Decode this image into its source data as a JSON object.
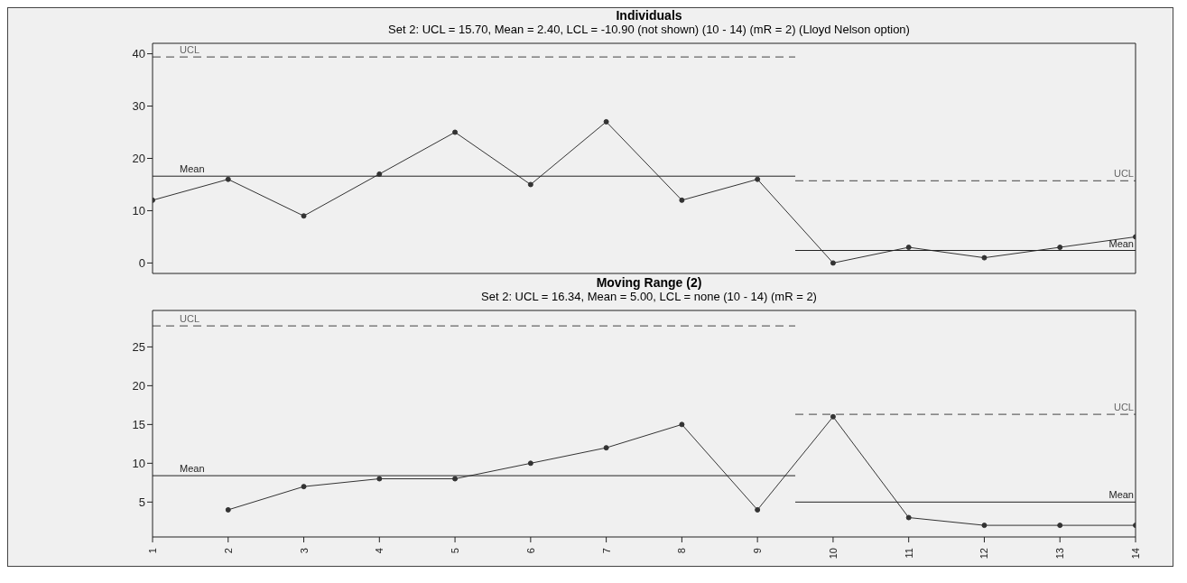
{
  "chart_data": [
    {
      "type": "line",
      "title": "Individuals",
      "subtitle": "Set 2: UCL = 15.70, Mean = 2.40, LCL = -10.90 (not shown) (10 - 14) (mR = 2) (Lloyd Nelson option)",
      "x": [
        1,
        2,
        3,
        4,
        5,
        6,
        7,
        8,
        9,
        10,
        11,
        12,
        13,
        14
      ],
      "xlim": [
        1,
        14
      ],
      "xticks": [
        1,
        2,
        3,
        4,
        5,
        6,
        7,
        8,
        9,
        10,
        11,
        12,
        13,
        14
      ],
      "ylim": [
        -2,
        42
      ],
      "yticks": [
        0,
        10,
        20,
        30,
        40
      ],
      "tick_labels": "y",
      "grid": false,
      "series": [
        {
          "color": "#333333",
          "marker": "circle",
          "line_style": "solid",
          "values": [
            12,
            16,
            9,
            17,
            25,
            15,
            27,
            12,
            16,
            0,
            3,
            1,
            3,
            5
          ]
        },
        {
          "name": "UCL",
          "color": "#666666",
          "marker": "none",
          "line_style": "dashed",
          "x": [
            1,
            9.5
          ],
          "values": [
            39.4,
            39.4
          ]
        },
        {
          "name": "Mean",
          "color": "#222222",
          "marker": "none",
          "line_style": "solid",
          "x": [
            1,
            9.5
          ],
          "values": [
            16.6,
            16.6
          ]
        },
        {
          "name": "UCL",
          "color": "#666666",
          "marker": "none",
          "line_style": "dashed",
          "x": [
            9.5,
            14
          ],
          "values": [
            15.7,
            15.7
          ]
        },
        {
          "name": "Mean",
          "color": "#222222",
          "marker": "none",
          "line_style": "solid",
          "x": [
            9.5,
            14
          ],
          "values": [
            2.4,
            2.4
          ]
        }
      ]
    },
    {
      "type": "line",
      "title": "Moving Range (2)",
      "subtitle": "Set 2: UCL = 16.34, Mean = 5.00, LCL = none (10 - 14) (mR = 2)",
      "xlim": [
        1,
        14
      ],
      "xticks": [
        1,
        2,
        3,
        4,
        5,
        6,
        7,
        8,
        9,
        10,
        11,
        12,
        13,
        14
      ],
      "ylim": [
        0.5,
        29.7
      ],
      "yticks": [
        5,
        10,
        15,
        20,
        25
      ],
      "grid": false,
      "series": [
        {
          "color": "#333333",
          "marker": "circle",
          "line_style": "solid",
          "x": [
            2,
            3,
            4,
            5,
            6,
            7,
            8,
            9,
            10,
            11,
            12,
            13,
            14
          ],
          "values": [
            4,
            7,
            8,
            8,
            10,
            12,
            15,
            4,
            16,
            3,
            2,
            2,
            2
          ]
        },
        {
          "name": "UCL",
          "color": "#666666",
          "marker": "none",
          "line_style": "dashed",
          "x": [
            1,
            9.5
          ],
          "values": [
            27.7,
            27.7
          ]
        },
        {
          "name": "Mean",
          "color": "#222222",
          "marker": "none",
          "line_style": "solid",
          "x": [
            1,
            9.5
          ],
          "values": [
            8.4,
            8.4
          ]
        },
        {
          "name": "UCL",
          "color": "#666666",
          "marker": "none",
          "line_style": "dashed",
          "x": [
            9.5,
            14
          ],
          "values": [
            16.3,
            16.3
          ]
        },
        {
          "name": "Mean",
          "color": "#222222",
          "marker": "none",
          "line_style": "solid",
          "x": [
            9.5,
            14
          ],
          "values": [
            5,
            5
          ]
        }
      ]
    }
  ]
}
